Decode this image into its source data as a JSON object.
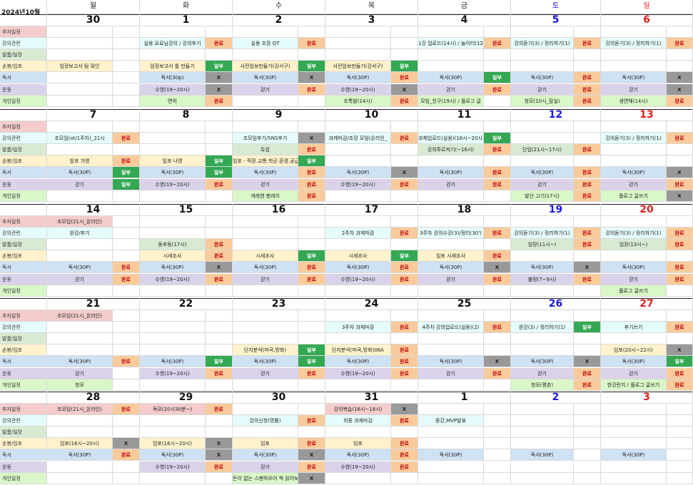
{
  "title": "2024년10월",
  "weekday_headers": [
    "월",
    "화",
    "수",
    "목",
    "금",
    "토",
    "일"
  ],
  "row_labels": [
    "추자일정",
    "강의관련",
    "발룸/일장",
    "손봉/임포",
    "독서",
    "운동",
    "개인일정"
  ],
  "colors": {
    "pink": "#f4cccc",
    "cyan": "#e6fbfb",
    "green": "#d9ead3",
    "yellow": "#fff2cc",
    "blue": "#cfe2f3",
    "purple": "#d9d2e9",
    "lime": "#d9f7c8",
    "done": "#f9cb9c",
    "partial": "#34a853",
    "none": "#999999",
    "saturday_text": "#1a1adc",
    "sunday_text": "#e02020"
  },
  "weeks": [
    {
      "dates": [
        "30",
        "1",
        "2",
        "3",
        "4",
        "5",
        "6"
      ],
      "rows": [
        [
          [
            "",
            ""
          ],
          [
            "",
            ""
          ],
          [
            "",
            ""
          ],
          [
            "",
            ""
          ],
          [
            "",
            ""
          ],
          [
            "",
            ""
          ],
          [
            "",
            ""
          ]
        ],
        [
          [
            "",
            ""
          ],
          [
            "실용 요료님강의 / 강의후기",
            "완료"
          ],
          [
            "실용 조장 OT",
            "완료"
          ],
          [
            "",
            ""
          ],
          [
            "1강 업로드(14시) / 놀이터(12",
            "완료"
          ],
          [
            "강의듣기(3) / 정리하기(1)",
            "완료"
          ],
          [
            "강의듣기(3) / 정리하기(1)",
            "완료"
          ]
        ],
        [
          [
            "",
            ""
          ],
          [
            "",
            ""
          ],
          [
            "",
            ""
          ],
          [
            "",
            ""
          ],
          [
            "",
            ""
          ],
          [
            "",
            ""
          ],
          [
            "",
            ""
          ]
        ],
        [
          [
            "임장보고서 팀 확인",
            ""
          ],
          [
            "임장보고서 틀 만들기",
            "일부"
          ],
          [
            "사전임보만들기(강서구)",
            "일부"
          ],
          [
            "사전임보만들기(강서구)",
            "일부"
          ],
          [
            "",
            ""
          ],
          [
            "",
            ""
          ],
          [
            "",
            ""
          ]
        ],
        [
          [
            "",
            ""
          ],
          [
            "독서(30p)",
            "X"
          ],
          [
            "독서(30P)",
            "X"
          ],
          [
            "독서(30P)",
            "완료"
          ],
          [
            "독서(30P)",
            "일부"
          ],
          [
            "독서(30P)",
            "완료"
          ],
          [
            "독서(30P)",
            "X"
          ]
        ],
        [
          [
            "",
            ""
          ],
          [
            "수영(19~20시)",
            "X"
          ],
          [
            "걷기",
            "완료"
          ],
          [
            "수영(19~20시)",
            "X"
          ],
          [
            "걷기",
            "완료"
          ],
          [
            "걷기",
            "완료"
          ],
          [
            "걷기",
            "X"
          ]
        ],
        [
          [
            "",
            ""
          ],
          [
            "면허",
            "완료"
          ],
          [
            "",
            ""
          ],
          [
            "조특발(14시)",
            "완료"
          ],
          [
            "모임_친구(19시) / 플로그 글",
            ""
          ],
          [
            "청모(10시_잠실)",
            "완료"
          ],
          [
            "생면해(14시)",
            "완료"
          ]
        ]
      ]
    },
    {
      "dates": [
        "7",
        "8",
        "9",
        "10",
        "11",
        "12",
        "13"
      ],
      "rows": [
        [
          [
            "",
            ""
          ],
          [
            "",
            ""
          ],
          [
            "",
            ""
          ],
          [
            "",
            ""
          ],
          [
            "",
            ""
          ],
          [
            "",
            ""
          ],
          [
            "",
            ""
          ]
        ],
        [
          [
            "조모임(ot/1주차)_21시",
            "완료"
          ],
          [
            "",
            ""
          ],
          [
            "조모임후기/SNS후기",
            "X"
          ],
          [
            "과제마감/조장 모임(온라인_",
            "완료"
          ],
          [
            "과제업로드(실용)(16시~20시) /",
            "일부"
          ],
          [
            "",
            ""
          ],
          [
            "강의듣기(3) / 정리하기(1)",
            "완료"
          ]
        ],
        [
          [
            "",
            ""
          ],
          [
            "",
            ""
          ],
          [
            "듀임",
            "완료"
          ],
          [
            "",
            ""
          ],
          [
            "강의투르저기(~16시)",
            "완료"
          ],
          [
            "단임(21시~17시)",
            "완료"
          ],
          [
            "",
            ""
          ]
        ],
        [
          [
            "임포 가명",
            "완료"
          ],
          [
            "임포 나명",
            "일부"
          ],
          [
            "임포 - 직장.교통.학군.환경.공급",
            "일부"
          ],
          [
            "",
            ""
          ],
          [
            "",
            ""
          ],
          [
            "",
            ""
          ],
          [
            "",
            ""
          ]
        ],
        [
          [
            "독서(30P)",
            "일부"
          ],
          [
            "독서(30P)",
            "일부"
          ],
          [
            "독서(30P)",
            "완료"
          ],
          [
            "독서(30P)",
            "X"
          ],
          [
            "독서(30P)",
            "완료"
          ],
          [
            "독서(30P)",
            "완료"
          ],
          [
            "독서(30P)",
            "X"
          ]
        ],
        [
          [
            "걷기",
            "일부"
          ],
          [
            "수영(19~20시)",
            "완료"
          ],
          [
            "걷기",
            "완료"
          ],
          [
            "수영(19~20시)",
            "완료"
          ],
          [
            "걷기",
            "완료"
          ],
          [
            "걷기",
            "완료"
          ],
          [
            "걷기",
            "완료"
          ]
        ],
        [
          [
            "",
            ""
          ],
          [
            "",
            ""
          ],
          [
            "개레엔 팬레이",
            "완료"
          ],
          [
            "",
            ""
          ],
          [
            "",
            ""
          ],
          [
            "발산 고기(17시)",
            "완료"
          ],
          [
            "플로그 글쓰기",
            "X"
          ]
        ]
      ]
    },
    {
      "dates": [
        "14",
        "15",
        "16",
        "17",
        "18",
        "19",
        "20"
      ],
      "rows": [
        [
          [
            "조모임(21시_온라인)",
            ""
          ],
          [
            "",
            ""
          ],
          [
            "",
            ""
          ],
          [
            "",
            ""
          ],
          [
            "",
            ""
          ],
          [
            "",
            ""
          ],
          [
            "",
            ""
          ]
        ],
        [
          [
            "완강/후기",
            ""
          ],
          [
            "",
            ""
          ],
          [
            "",
            ""
          ],
          [
            "2주차 과제마감",
            "완료"
          ],
          [
            "3주차 강의수강(3)/정리(30')",
            "완료"
          ],
          [
            "강의듣기(3) / 정리하기(1)",
            "완료"
          ],
          [
            "강의듣기(3) / 정리하기(1)",
            "완료"
          ]
        ],
        [
          [
            "",
            ""
          ],
          [
            "동후동(17시)",
            "완료"
          ],
          [
            "",
            ""
          ],
          [
            "",
            ""
          ],
          [
            "",
            ""
          ],
          [
            "임장(11시~)",
            "완료"
          ],
          [
            "임장(13시~)",
            "완료"
          ]
        ],
        [
          [
            "",
            ""
          ],
          [
            "시세조사",
            "완료"
          ],
          [
            "시세조사",
            "일부"
          ],
          [
            "시세조사",
            "일부"
          ],
          [
            "임포 시세조사",
            "완료"
          ],
          [
            "",
            ""
          ],
          [
            "",
            ""
          ]
        ],
        [
          [
            "독서(30P)",
            "완료"
          ],
          [
            "독서(30P)",
            "X"
          ],
          [
            "독서(30P)",
            "완료"
          ],
          [
            "독서(30P)",
            "완료"
          ],
          [
            "독서(30P)",
            "X"
          ],
          [
            "독서(30P)",
            "X"
          ],
          [
            "독서(30P)",
            "완료"
          ]
        ],
        [
          [
            "걷기",
            "완료"
          ],
          [
            "수영(19~20시)",
            "완료"
          ],
          [
            "걷기",
            "완료"
          ],
          [
            "수영(19~20시)",
            "완료"
          ],
          [
            "걷기",
            "완료"
          ],
          [
            "볼링(7~9시)",
            "완료"
          ],
          [
            "걷기",
            "완료"
          ]
        ],
        [
          [
            "",
            ""
          ],
          [
            "",
            ""
          ],
          [
            "",
            ""
          ],
          [
            "",
            ""
          ],
          [
            "",
            ""
          ],
          [
            "",
            ""
          ],
          [
            "플로그 글쓰기",
            ""
          ]
        ]
      ]
    },
    {
      "dates": [
        "21",
        "22",
        "23",
        "24",
        "25",
        "26",
        "27"
      ],
      "rows": [
        [
          [
            "조모임(21시_온라인)",
            ""
          ],
          [
            "",
            ""
          ],
          [
            "",
            ""
          ],
          [
            "",
            ""
          ],
          [
            "",
            ""
          ],
          [
            "",
            ""
          ],
          [
            "",
            ""
          ]
        ],
        [
          [
            "",
            ""
          ],
          [
            "",
            ""
          ],
          [
            "",
            ""
          ],
          [
            "3주차 과제마감",
            "완료"
          ],
          [
            "4주차 강의업로드(실용)(2)",
            "완료"
          ],
          [
            "완강(3) / 정리하기(1)",
            "일부"
          ],
          [
            "후기쓰기",
            "완료"
          ]
        ],
        [
          [
            "",
            ""
          ],
          [
            "",
            ""
          ],
          [
            "",
            ""
          ],
          [
            "",
            ""
          ],
          [
            "",
            ""
          ],
          [
            "",
            ""
          ],
          [
            "",
            ""
          ]
        ],
        [
          [
            "",
            ""
          ],
          [
            "",
            ""
          ],
          [
            "단지분석(마곡,방화)",
            "일부"
          ],
          [
            "단지분석(마곡,방화)06A",
            "완료"
          ],
          [
            "",
            ""
          ],
          [
            "",
            ""
          ],
          [
            "임포(20시~22시)",
            "X"
          ]
        ],
        [
          [
            "독서(30P)",
            "완료"
          ],
          [
            "독서(30P)",
            "일부"
          ],
          [
            "독서(30P)",
            "일부"
          ],
          [
            "독서(30P)",
            "완료"
          ],
          [
            "독서(30P)",
            "X"
          ],
          [
            "독서(30P)",
            "X"
          ],
          [
            "독서(30P)",
            "일부"
          ]
        ],
        [
          [
            "걷기",
            ""
          ],
          [
            "수영(19~20시)",
            "완료"
          ],
          [
            "걷기",
            "완료"
          ],
          [
            "수영(19~20시)",
            "완료"
          ],
          [
            "걷기",
            "완료"
          ],
          [
            "걷기",
            "완료"
          ],
          [
            "걷기",
            "완료"
          ]
        ],
        [
          [
            "청모",
            ""
          ],
          [
            "",
            ""
          ],
          [
            "",
            ""
          ],
          [
            "",
            ""
          ],
          [
            "",
            ""
          ],
          [
            "청모(평촌)",
            "완료"
          ],
          [
            "한강런치 / 플로그 글쓰기",
            "완료"
          ]
        ]
      ]
    },
    {
      "dates": [
        "28",
        "29",
        "30",
        "31",
        "1",
        "2",
        "3"
      ],
      "rows": [
        [
          [
            "조모임(21시_온라인)",
            "완료"
          ],
          [
            "독모(20시30분~)",
            "완료"
          ],
          [
            "",
            ""
          ],
          [
            "강의복습(16시~18시)",
            "X"
          ],
          [
            "",
            ""
          ],
          [
            "",
            ""
          ],
          [
            "",
            ""
          ]
        ],
        [
          [
            "",
            ""
          ],
          [
            "",
            ""
          ],
          [
            "강의신청(명품)",
            "완료"
          ],
          [
            "최종 과제마감",
            "완료"
          ],
          [
            "종강,MVP발표",
            ""
          ],
          [
            "",
            ""
          ],
          [
            "",
            ""
          ]
        ],
        [
          [
            "",
            ""
          ],
          [
            "",
            ""
          ],
          [
            "",
            ""
          ],
          [
            "",
            ""
          ],
          [
            "",
            ""
          ],
          [
            "",
            ""
          ],
          [
            "",
            ""
          ]
        ],
        [
          [
            "임포(16시~20시)",
            "X"
          ],
          [
            "임포(16시~20시)",
            "X"
          ],
          [
            "임포",
            "완료"
          ],
          [
            "임포",
            "완료"
          ],
          [
            "",
            ""
          ],
          [
            "",
            ""
          ],
          [
            "",
            ""
          ]
        ],
        [
          [
            "독서(30P)",
            "완료"
          ],
          [
            "독서(30P)",
            "X"
          ],
          [
            "독서(30P)",
            "X"
          ],
          [
            "독서(30P)",
            "완료"
          ],
          [
            "독서(30P)",
            ""
          ],
          [
            "독서(30P)",
            ""
          ],
          [
            "독서(30P)",
            ""
          ]
        ],
        [
          [
            "",
            ""
          ],
          [
            "수영(19~20시)",
            "완료"
          ],
          [
            "걷기",
            "완료"
          ],
          [
            "수영(19~20시)",
            "완료"
          ],
          [
            "",
            ""
          ],
          [
            "",
            ""
          ],
          [
            "",
            ""
          ]
        ],
        [
          [
            "",
            ""
          ],
          [
            "",
            ""
          ],
          [
            "돈이 없는 스펜하우어 책 읽어보",
            "X"
          ],
          [
            "",
            ""
          ],
          [
            "",
            ""
          ],
          [
            "",
            ""
          ],
          [
            "",
            ""
          ]
        ]
      ]
    }
  ]
}
